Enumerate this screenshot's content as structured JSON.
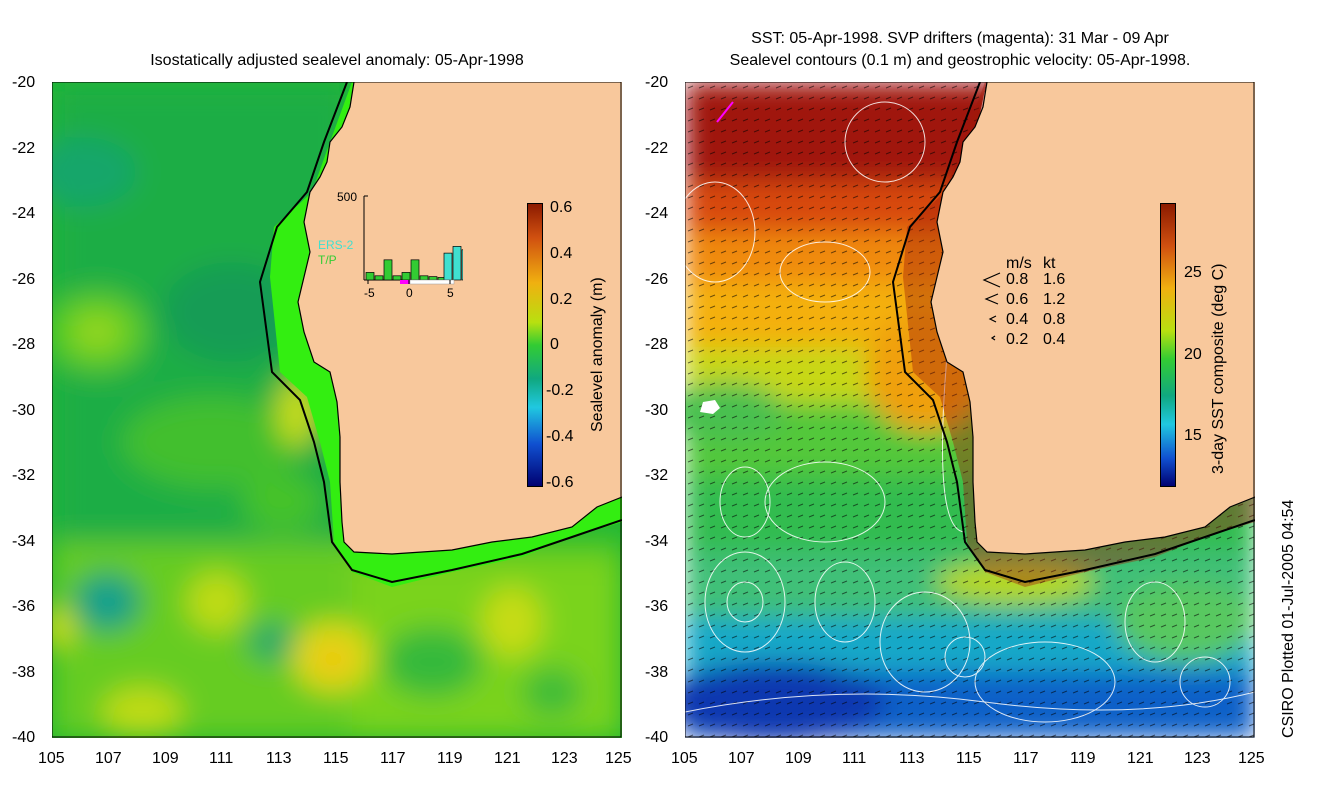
{
  "left_panel": {
    "title": "Isostatically adjusted sealevel anomaly: 05-Apr-1998",
    "y_ticks": [
      "-20",
      "-22",
      "-24",
      "-26",
      "-28",
      "-30",
      "-32",
      "-34",
      "-36",
      "-38",
      "-40"
    ],
    "x_ticks": [
      "105",
      "107",
      "109",
      "111",
      "113",
      "115",
      "117",
      "119",
      "121",
      "123",
      "125"
    ],
    "colorbar_label": "Sealevel anomaly (m)",
    "colorbar_ticks": [
      "0.6",
      "0.4",
      "0.2",
      "0",
      "-0.2",
      "-0.4",
      "-0.6"
    ],
    "inset": {
      "y_max_label": "500",
      "x_ticks": [
        "-5",
        "0",
        "5"
      ],
      "legend_ers2": "ERS-2",
      "legend_tp": "T/P",
      "ers2_color": "#40e0d0",
      "tp_color": "#33cc33",
      "tp_bars": [
        45,
        25,
        120,
        25,
        45,
        120,
        25,
        20,
        15
      ],
      "ers2_bars": [
        0,
        0,
        0,
        0,
        0,
        0,
        160,
        200,
        180
      ]
    }
  },
  "right_panel": {
    "title_line1": "SST: 05-Apr-1998. SVP drifters (magenta): 31 Mar - 09 Apr",
    "title_line2": "Sealevel contours (0.1 m) and geostrophic velocity: 05-Apr-1998.",
    "y_ticks": [
      "-20",
      "-22",
      "-24",
      "-26",
      "-28",
      "-30",
      "-32",
      "-34",
      "-36",
      "-38",
      "-40"
    ],
    "x_ticks": [
      "105",
      "107",
      "109",
      "111",
      "113",
      "115",
      "117",
      "119",
      "121",
      "123",
      "125"
    ],
    "colorbar_label": "3-day SST composite (deg C)",
    "colorbar_ticks": [
      "25",
      "20",
      "15"
    ],
    "velocity_key": {
      "header_ms": "m/s",
      "header_kt": "kt",
      "rows": [
        {
          "ms": "0.8",
          "kt": "1.6"
        },
        {
          "ms": "0.6",
          "kt": "1.2"
        },
        {
          "ms": "0.4",
          "kt": "0.8"
        },
        {
          "ms": "0.2",
          "kt": "0.4"
        }
      ]
    }
  },
  "credit": "CSIRO Plotted 01-Jul-2005 04:54",
  "colors": {
    "land": "#f8c89c",
    "shelf": "#33ee11",
    "coast": "#000000"
  }
}
